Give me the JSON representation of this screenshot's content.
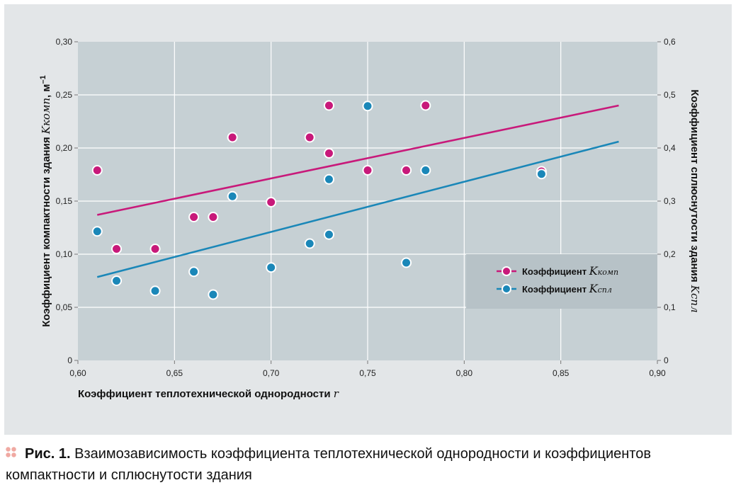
{
  "chart_data": {
    "type": "scatter",
    "title": "",
    "xlabel": "Коэффициент теплотехнической однородности",
    "xlabel_var": "r",
    "ylabel_left": "Коэффициент компактности здания",
    "ylabel_left_var": "Kкомп",
    "ylabel_left_unit": ", м",
    "ylabel_left_unit_exp": "–1",
    "ylabel_right": "Коэффициент сплюснутости здания",
    "ylabel_right_var": "Kспл",
    "xlim": [
      0.6,
      0.9
    ],
    "ylim_left": [
      0,
      0.3
    ],
    "ylim_right": [
      0,
      0.6
    ],
    "x_ticks": [
      "0,60",
      "0,65",
      "0,70",
      "0,75",
      "0,80",
      "0,85",
      "0,90"
    ],
    "y_left_ticks": [
      "0",
      "0,05",
      "0,10",
      "0,15",
      "0,20",
      "0,25",
      "0,30"
    ],
    "y_right_ticks": [
      "0",
      "0,1",
      "0,2",
      "0,3",
      "0,4",
      "0,5",
      "0,6"
    ],
    "grid": true,
    "legend_position": "bottom-right",
    "series": [
      {
        "name": "Коэффициент",
        "name_var": "K",
        "name_sub": "комп",
        "axis": "left",
        "color": "#c8197a",
        "points": [
          [
            0.61,
            0.179
          ],
          [
            0.62,
            0.105
          ],
          [
            0.64,
            0.105
          ],
          [
            0.66,
            0.135
          ],
          [
            0.67,
            0.135
          ],
          [
            0.68,
            0.21
          ],
          [
            0.7,
            0.149
          ],
          [
            0.72,
            0.21
          ],
          [
            0.73,
            0.24
          ],
          [
            0.73,
            0.195
          ],
          [
            0.75,
            0.179
          ],
          [
            0.77,
            0.179
          ],
          [
            0.78,
            0.24
          ],
          [
            0.84,
            0.178
          ]
        ],
        "trend": [
          [
            0.61,
            0.137
          ],
          [
            0.88,
            0.24
          ]
        ]
      },
      {
        "name": "Коэффициент",
        "name_var": "K",
        "name_sub": "спл",
        "axis": "right",
        "color": "#1a87b8",
        "points": [
          [
            0.61,
            0.243
          ],
          [
            0.62,
            0.15
          ],
          [
            0.64,
            0.131
          ],
          [
            0.66,
            0.167
          ],
          [
            0.67,
            0.124
          ],
          [
            0.68,
            0.309
          ],
          [
            0.7,
            0.175
          ],
          [
            0.72,
            0.22
          ],
          [
            0.73,
            0.341
          ],
          [
            0.73,
            0.237
          ],
          [
            0.75,
            0.479
          ],
          [
            0.77,
            0.184
          ],
          [
            0.78,
            0.358
          ],
          [
            0.84,
            0.351
          ]
        ],
        "trend": [
          [
            0.61,
            0.157
          ],
          [
            0.88,
            0.412
          ]
        ]
      }
    ]
  },
  "caption": {
    "label": "Рис. 1.",
    "text": "Взаимозависимость коэффициента теплотехнической однородности и коэффициентов компактности и сплюснутости здания"
  }
}
